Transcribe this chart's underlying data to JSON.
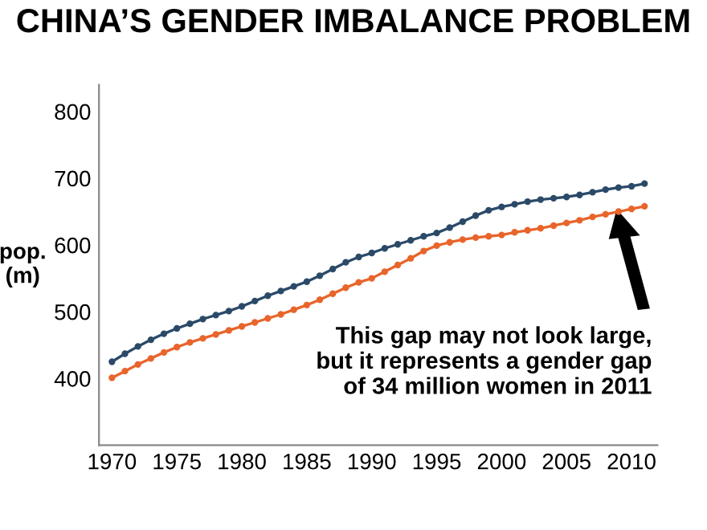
{
  "chart_data": {
    "type": "line",
    "title": "CHINA’S GENDER IMBALANCE PROBLEM",
    "ylabel": "pop.\n(m)",
    "x": [
      1970,
      1971,
      1972,
      1973,
      1974,
      1975,
      1976,
      1977,
      1978,
      1979,
      1980,
      1981,
      1982,
      1983,
      1984,
      1985,
      1986,
      1987,
      1988,
      1989,
      1990,
      1991,
      1992,
      1993,
      1994,
      1995,
      1996,
      1997,
      1998,
      1999,
      2000,
      2001,
      2002,
      2003,
      2004,
      2005,
      2006,
      2007,
      2008,
      2009,
      2010,
      2011
    ],
    "series": [
      {
        "color": "#2b4a68",
        "values": [
          425,
          437,
          448,
          458,
          467,
          475,
          482,
          489,
          495,
          501,
          508,
          516,
          524,
          531,
          538,
          545,
          554,
          564,
          574,
          582,
          588,
          595,
          601,
          607,
          613,
          618,
          626,
          635,
          644,
          652,
          657,
          661,
          665,
          668,
          670,
          672,
          675,
          679,
          683,
          686,
          688,
          692
        ]
      },
      {
        "color": "#e8652b",
        "values": [
          401,
          411,
          421,
          430,
          439,
          447,
          454,
          460,
          466,
          472,
          478,
          484,
          490,
          496,
          503,
          510,
          518,
          527,
          536,
          544,
          550,
          560,
          570,
          580,
          591,
          599,
          604,
          608,
          611,
          613,
          615,
          619,
          622,
          625,
          629,
          633,
          637,
          642,
          646,
          650,
          654,
          658
        ]
      }
    ],
    "xlim": [
      1969,
      2012
    ],
    "ylim": [
      300,
      840
    ],
    "xticks": [
      1970,
      1975,
      1980,
      1985,
      1990,
      1995,
      2000,
      2005,
      2010
    ],
    "yticks": [
      400,
      500,
      600,
      700,
      800
    ],
    "grid": false,
    "legend": false,
    "marker": "circle",
    "line_style": "solid",
    "annotations": [
      "This gap may not look large,\nbut it represents a gender gap\nof 34 million women in 2011"
    ]
  }
}
